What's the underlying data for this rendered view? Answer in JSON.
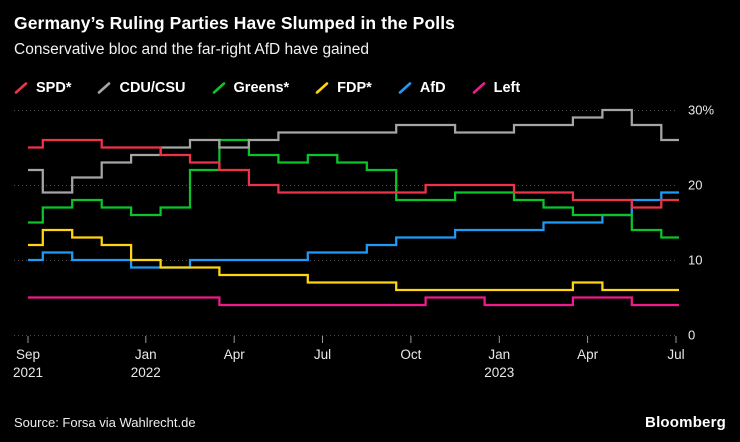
{
  "footer": {
    "source": "Source: Forsa via Wahlrecht.de",
    "brand": "Bloomberg"
  },
  "chart_data": {
    "type": "line",
    "title": "Germany’s Ruling Parties Have Slumped in the Polls",
    "subtitle": "Conservative bloc and the far-right AfD have gained",
    "unit": "%",
    "grid": "horizontal-dotted",
    "legend_position": "top-left",
    "line_style": "step",
    "ylim": [
      0,
      30
    ],
    "yticks": [
      {
        "value": 0,
        "label": "0"
      },
      {
        "value": 10,
        "label": "10"
      },
      {
        "value": 20,
        "label": "20"
      },
      {
        "value": 30,
        "label": "30%"
      }
    ],
    "x": [
      "2021-09",
      "2021-10",
      "2021-11",
      "2021-12",
      "2022-01",
      "2022-02",
      "2022-03",
      "2022-04",
      "2022-05",
      "2022-06",
      "2022-07",
      "2022-08",
      "2022-09",
      "2022-10",
      "2022-11",
      "2022-12",
      "2023-01",
      "2023-02",
      "2023-03",
      "2023-04",
      "2023-05",
      "2023-06",
      "2023-07"
    ],
    "xticks": [
      {
        "index": 0,
        "line1": "Sep",
        "line2": "2021"
      },
      {
        "index": 4,
        "line1": "Jan",
        "line2": "2022"
      },
      {
        "index": 7,
        "line1": "Apr",
        "line2": ""
      },
      {
        "index": 10,
        "line1": "Jul",
        "line2": ""
      },
      {
        "index": 13,
        "line1": "Oct",
        "line2": ""
      },
      {
        "index": 16,
        "line1": "Jan",
        "line2": "2023"
      },
      {
        "index": 19,
        "line1": "Apr",
        "line2": ""
      },
      {
        "index": 22,
        "line1": "Jul",
        "line2": ""
      }
    ],
    "series": [
      {
        "name": "SPD*",
        "color": "#ee3248",
        "values": [
          25,
          26,
          26,
          25,
          25,
          24,
          23,
          22,
          20,
          19,
          19,
          19,
          19,
          19,
          20,
          20,
          20,
          19,
          19,
          18,
          18,
          17,
          18
        ]
      },
      {
        "name": "CDU/CSU",
        "color": "#a5a5a5",
        "values": [
          22,
          19,
          21,
          23,
          24,
          25,
          26,
          25,
          26,
          27,
          27,
          27,
          27,
          28,
          28,
          27,
          27,
          28,
          28,
          29,
          30,
          28,
          26
        ]
      },
      {
        "name": "Greens*",
        "color": "#0ac42a",
        "values": [
          15,
          17,
          18,
          17,
          16,
          17,
          22,
          26,
          24,
          23,
          24,
          23,
          22,
          18,
          18,
          19,
          19,
          18,
          17,
          16,
          16,
          14,
          13
        ]
      },
      {
        "name": "FDP*",
        "color": "#ffd412",
        "values": [
          12,
          14,
          13,
          12,
          10,
          9,
          9,
          8,
          8,
          8,
          7,
          7,
          7,
          6,
          6,
          6,
          6,
          6,
          6,
          7,
          6,
          6,
          6
        ]
      },
      {
        "name": "AfD",
        "color": "#1d9bf7",
        "values": [
          10,
          11,
          10,
          10,
          9,
          9,
          10,
          10,
          10,
          10,
          11,
          11,
          12,
          13,
          13,
          14,
          14,
          14,
          15,
          15,
          16,
          18,
          19
        ]
      },
      {
        "name": "Left",
        "color": "#f01a8c",
        "values": [
          5,
          5,
          5,
          5,
          5,
          5,
          5,
          4,
          4,
          4,
          4,
          4,
          4,
          4,
          5,
          5,
          4,
          4,
          4,
          5,
          5,
          4,
          4
        ]
      }
    ]
  }
}
